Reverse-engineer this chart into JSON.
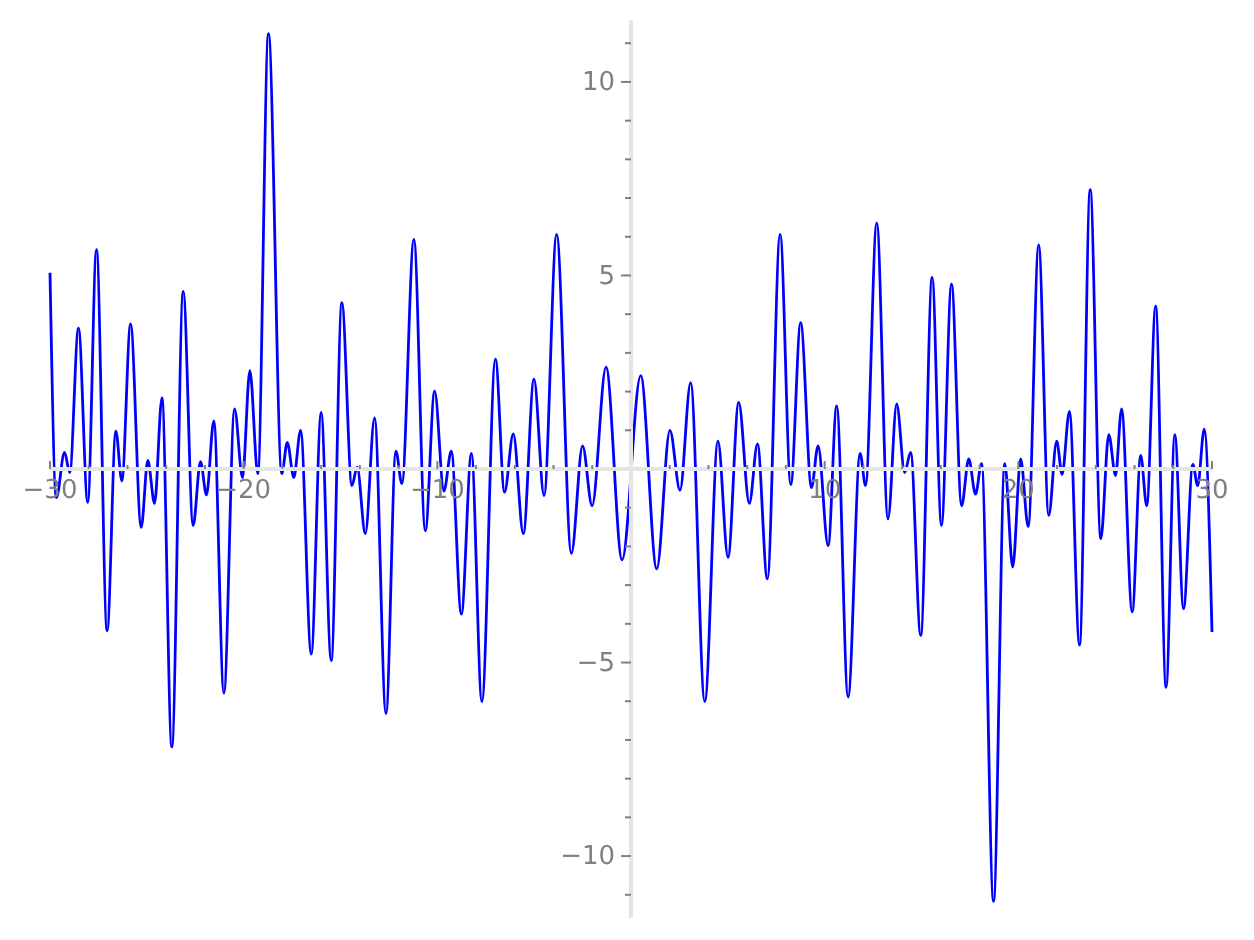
{
  "chart_data": {
    "type": "line",
    "xlim": [
      -30,
      30
    ],
    "ylim": [
      -11.6,
      11.6
    ],
    "xticks": [
      {
        "value": -30,
        "label": "−30"
      },
      {
        "value": -28,
        "label": null
      },
      {
        "value": -26,
        "label": null
      },
      {
        "value": -24,
        "label": null
      },
      {
        "value": -22,
        "label": null
      },
      {
        "value": -20,
        "label": "−20"
      },
      {
        "value": -18,
        "label": null
      },
      {
        "value": -16,
        "label": null
      },
      {
        "value": -14,
        "label": null
      },
      {
        "value": -12,
        "label": null
      },
      {
        "value": -10,
        "label": "−10"
      },
      {
        "value": -8,
        "label": null
      },
      {
        "value": -6,
        "label": null
      },
      {
        "value": -4,
        "label": null
      },
      {
        "value": -2,
        "label": null
      },
      {
        "value": 2,
        "label": null
      },
      {
        "value": 4,
        "label": null
      },
      {
        "value": 6,
        "label": null
      },
      {
        "value": 8,
        "label": null
      },
      10,
      {
        "value": 12,
        "label": null
      },
      {
        "value": 14,
        "label": null
      },
      {
        "value": 16,
        "label": null
      },
      {
        "value": 18,
        "label": null
      },
      20,
      {
        "value": 22,
        "label": null
      },
      {
        "value": 24,
        "label": null
      },
      {
        "value": 26,
        "label": null
      },
      {
        "value": 28,
        "label": null
      },
      30
    ],
    "yticks": [
      {
        "value": -11,
        "label": null
      },
      {
        "value": -10,
        "label": "−10"
      },
      {
        "value": -9,
        "label": null
      },
      {
        "value": -8,
        "label": null
      },
      {
        "value": -7,
        "label": null
      },
      {
        "value": -6,
        "label": null
      },
      {
        "value": -5,
        "label": "−5"
      },
      {
        "value": -4,
        "label": null
      },
      {
        "value": -3,
        "label": null
      },
      {
        "value": -2,
        "label": null
      },
      {
        "value": -1,
        "label": null
      },
      {
        "value": 1,
        "label": null
      },
      {
        "value": 2,
        "label": null
      },
      {
        "value": 3,
        "label": null
      },
      {
        "value": 4,
        "label": null
      },
      5,
      {
        "value": 6,
        "label": null
      },
      {
        "value": 7,
        "label": null
      },
      {
        "value": 8,
        "label": null
      },
      {
        "value": 9,
        "label": null
      },
      10,
      {
        "value": 11,
        "label": null
      }
    ],
    "grid": false,
    "series": [
      {
        "color": "#0000ff",
        "x": [
          -30.0,
          -29.67,
          -29.25,
          -28.98,
          -28.53,
          -28.05,
          -27.6,
          -27.05,
          -26.6,
          -26.29,
          -25.84,
          -25.29,
          -24.95,
          -24.6,
          -24.22,
          -23.71,
          -23.12,
          -22.61,
          -22.23,
          -21.92,
          -21.54,
          -21.02,
          -20.47,
          -20.06,
          -19.68,
          -19.27,
          -18.72,
          -18.03,
          -17.75,
          -17.41,
          -17.06,
          -16.51,
          -16.0,
          -15.48,
          -14.93,
          -14.41,
          -14.14,
          -13.72,
          -13.24,
          -12.65,
          -12.14,
          -11.83,
          -11.21,
          -10.62,
          -10.14,
          -9.66,
          -9.28,
          -8.76,
          -8.24,
          -7.7,
          -7.0,
          -6.53,
          -6.08,
          -5.56,
          -5.01,
          -4.49,
          -3.84,
          -3.08,
          -2.5,
          -2.01,
          -1.29,
          -0.46,
          0.5,
          1.33,
          2.01,
          2.53,
          3.08,
          3.81,
          4.49,
          5.01,
          5.56,
          6.11,
          6.53,
          7.04,
          7.7,
          8.25,
          8.76,
          9.32,
          9.66,
          10.18,
          10.62,
          11.21,
          11.83,
          12.11,
          12.69,
          13.27,
          13.72,
          14.13,
          14.44,
          14.96,
          15.55,
          16.03,
          16.55,
          17.07,
          17.44,
          17.79,
          18.1,
          18.72,
          19.3,
          19.71,
          20.12,
          20.51,
          21.05,
          21.57,
          21.98,
          22.26,
          22.64,
          23.16,
          23.71,
          24.26,
          24.67,
          25.02,
          25.33,
          25.88,
          26.32,
          26.63,
          27.09,
          27.63,
          28.08,
          28.53,
          29.01,
          29.26,
          29.6,
          30.0
        ],
        "values": [
          5.07,
          -0.74,
          0.43,
          -0.09,
          3.64,
          -0.86,
          5.67,
          -4.18,
          0.98,
          -0.31,
          3.75,
          -1.51,
          0.22,
          -0.89,
          1.84,
          -7.18,
          4.59,
          -1.46,
          0.19,
          -0.67,
          1.24,
          -5.79,
          1.55,
          -0.22,
          2.54,
          -0.12,
          11.25,
          -0.12,
          0.69,
          -0.22,
          1.0,
          -4.78,
          1.46,
          -4.95,
          4.3,
          -0.43,
          0.05,
          -1.67,
          1.32,
          -6.32,
          0.46,
          -0.38,
          5.93,
          -1.6,
          2.01,
          -0.57,
          0.46,
          -3.75,
          0.4,
          -6.01,
          2.84,
          -0.6,
          0.91,
          -1.67,
          2.32,
          -0.69,
          6.06,
          -2.18,
          0.6,
          -0.95,
          2.63,
          -2.35,
          2.41,
          -2.58,
          1.0,
          -0.55,
          2.23,
          -6.01,
          0.72,
          -2.28,
          1.72,
          -0.89,
          0.65,
          -2.84,
          6.06,
          -0.4,
          3.78,
          -0.48,
          0.6,
          -1.98,
          1.63,
          -5.89,
          0.4,
          -0.43,
          6.36,
          -1.29,
          1.68,
          -0.09,
          0.43,
          -4.3,
          4.95,
          -1.46,
          4.78,
          -0.95,
          0.26,
          -0.65,
          0.14,
          -11.17,
          0.14,
          -2.53,
          0.26,
          -1.49,
          5.79,
          -1.2,
          0.72,
          -0.14,
          1.49,
          -4.55,
          7.22,
          -1.8,
          0.89,
          -0.17,
          1.55,
          -3.69,
          0.35,
          -0.95,
          4.21,
          -5.64,
          0.89,
          -3.61,
          0.12,
          -0.43,
          1.03,
          -4.21
        ]
      }
    ]
  }
}
